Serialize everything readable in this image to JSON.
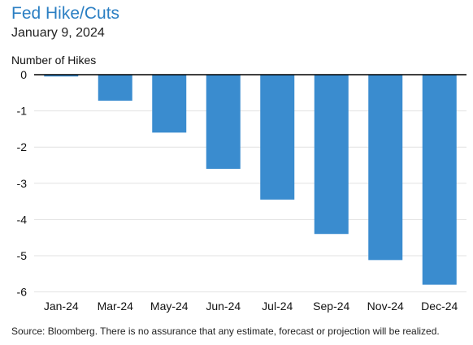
{
  "colors": {
    "title": "#2b7fc3",
    "bar": "#3a8ccf",
    "grid": "#e2e2e2",
    "zero_line": "#000000"
  },
  "chart_data": {
    "type": "bar",
    "title": "Fed Hike/Cuts",
    "subtitle": "January 9, 2024",
    "ylabel": "Number of Hikes",
    "xlabel": "",
    "categories": [
      "Jan-24",
      "Mar-24",
      "May-24",
      "Jun-24",
      "Jul-24",
      "Sep-24",
      "Nov-24",
      "Dec-24"
    ],
    "values": [
      -0.05,
      -0.72,
      -1.6,
      -2.6,
      -3.45,
      -4.4,
      -5.12,
      -5.8
    ],
    "ylim": [
      -6.2,
      0.2
    ],
    "yticks": [
      0,
      -1,
      -2,
      -3,
      -4,
      -5,
      -6
    ],
    "grid": true,
    "legend": "none"
  },
  "source": "Source: Bloomberg. There is no assurance that any estimate, forecast or projection will be realized."
}
